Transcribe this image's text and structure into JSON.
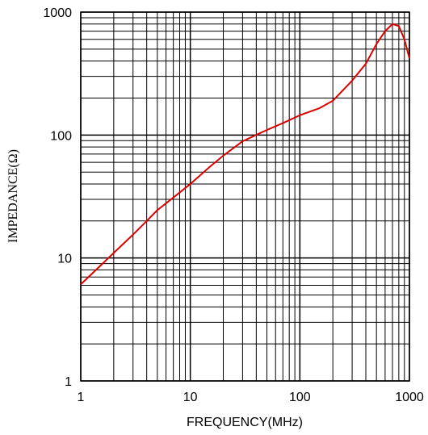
{
  "chart_data": {
    "type": "line",
    "xlabel": "FREQUENCY(MHz)",
    "ylabel": "IMPEDANCE(Ω)",
    "xscale": "log",
    "yscale": "log",
    "grid": true,
    "minor_grid": true,
    "xlim": [
      1,
      1000
    ],
    "ylim": [
      1,
      1000
    ],
    "xticks": [
      1,
      10,
      100,
      1000
    ],
    "yticks": [
      1,
      10,
      100,
      1000
    ],
    "x": [
      1,
      1.5,
      2,
      3,
      4,
      5,
      7,
      10,
      15,
      20,
      30,
      50,
      70,
      100,
      150,
      200,
      300,
      400,
      500,
      600,
      700,
      800,
      900,
      1000
    ],
    "series": [
      {
        "color": "#dd0000",
        "values": [
          6.1,
          8.6,
          11,
          15.5,
          20,
          24.5,
          31,
          40,
          55,
          68,
          89,
          110,
          125,
          145,
          165,
          190,
          277,
          380,
          550,
          700,
          800,
          770,
          600,
          420
        ]
      }
    ]
  }
}
